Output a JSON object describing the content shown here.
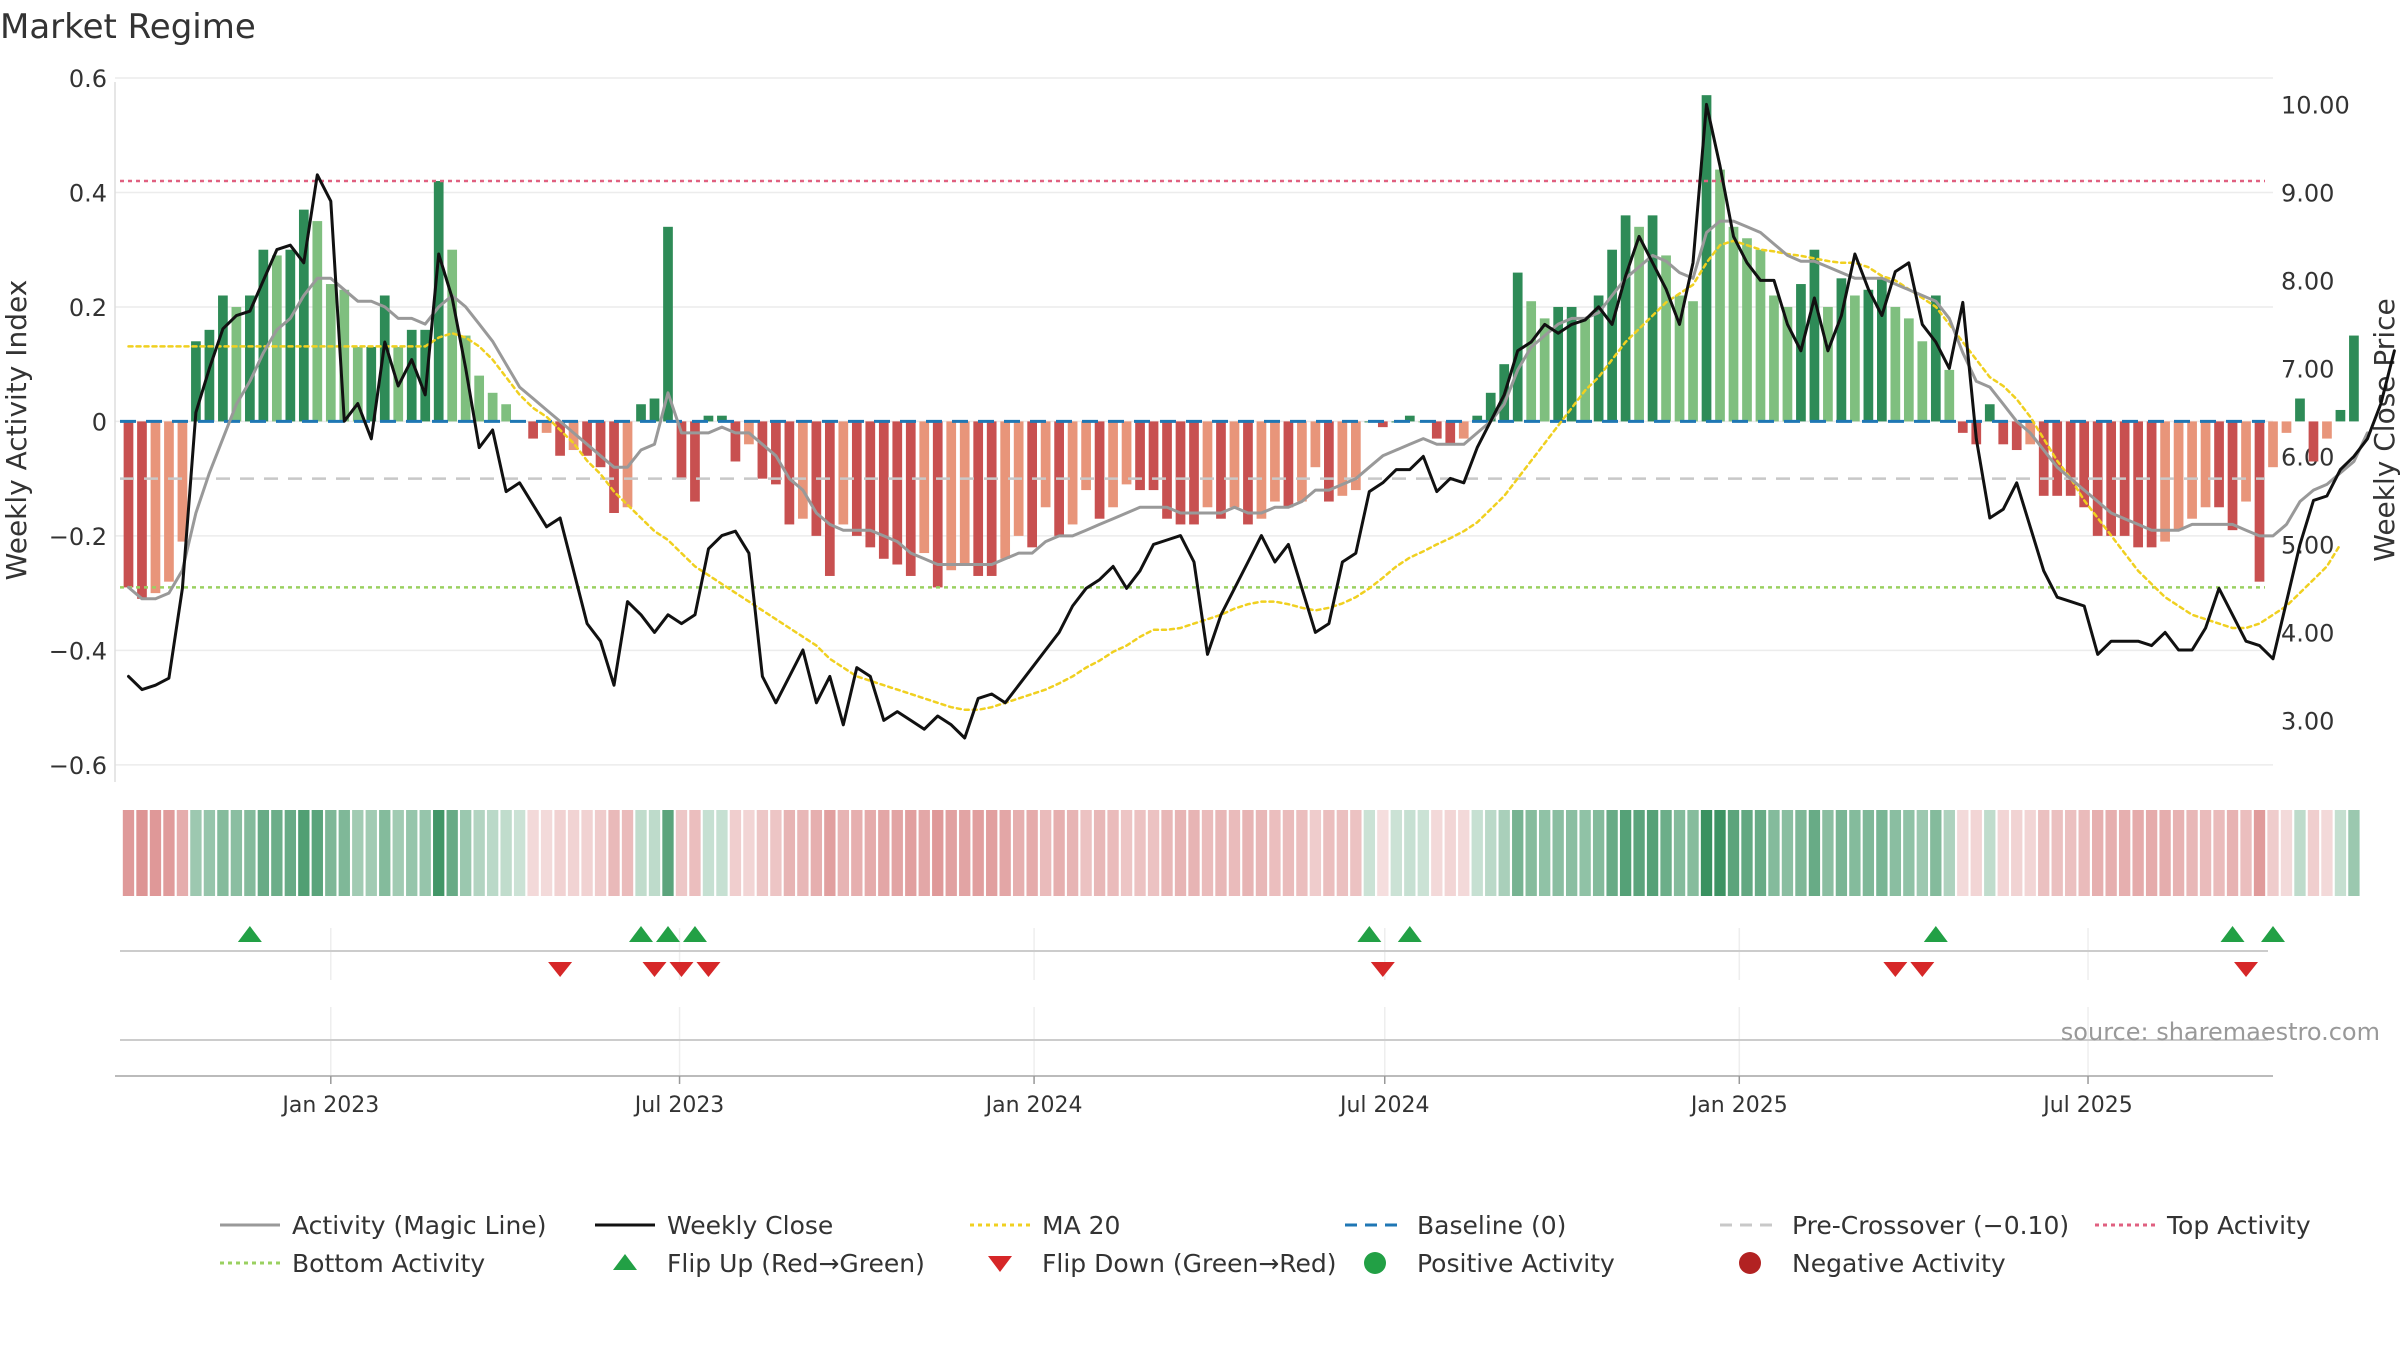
{
  "title": "Market Regime",
  "source_note": "source: sharemaestro.com",
  "colors": {
    "strong_green": "#2e8b57",
    "light_green": "#7fbf7f",
    "strong_red": "#c85050",
    "light_red": "#e8957a",
    "activity_line": "#999999",
    "close_line": "#111111",
    "ma20": "#f0d020",
    "baseline": "#1f77b4",
    "pre_crossover": "#c8c8c8",
    "top_activity": "#e06080",
    "bottom_activity": "#9ad060",
    "flip_up": "#22a045",
    "flip_down": "#d62728"
  },
  "legend": [
    {
      "label": "Activity (Magic Line)",
      "kind": "line",
      "color": "#999999",
      "dash": ""
    },
    {
      "label": "Weekly Close",
      "kind": "line",
      "color": "#111111",
      "dash": ""
    },
    {
      "label": "MA 20",
      "kind": "line",
      "color": "#f0d020",
      "dash": "4,4"
    },
    {
      "label": "Baseline (0)",
      "kind": "line",
      "color": "#1f77b4",
      "dash": "12,8"
    },
    {
      "label": "Pre-Crossover (−0.10)",
      "kind": "line",
      "color": "#c8c8c8",
      "dash": "12,8"
    },
    {
      "label": "Top Activity",
      "kind": "line",
      "color": "#e06080",
      "dash": "4,4"
    },
    {
      "label": "Bottom Activity",
      "kind": "line",
      "color": "#9ad060",
      "dash": "4,4"
    },
    {
      "label": "Flip Up (Red→Green)",
      "kind": "up",
      "color": "#22a045",
      "dash": ""
    },
    {
      "label": "Flip Down (Green→Red)",
      "kind": "down",
      "color": "#d62728",
      "dash": ""
    },
    {
      "label": "Positive Activity",
      "kind": "dot",
      "color": "#22a045",
      "dash": ""
    },
    {
      "label": "Negative Activity",
      "kind": "dot",
      "color": "#b22222",
      "dash": ""
    }
  ],
  "chart_data": {
    "type": "bar",
    "title": "Market Regime",
    "xlabel": "",
    "ylabel": "Weekly Activity Index",
    "y2label": "Weekly Close Price",
    "ylim": [
      -0.63,
      0.6
    ],
    "yticks": [
      -0.6,
      -0.4,
      -0.2,
      0,
      0.2,
      0.4,
      0.6
    ],
    "yticklabels": [
      "−0.6",
      "−0.4",
      "−0.2",
      "0",
      "0.2",
      "0.4",
      "0.6"
    ],
    "y2lim": [
      2.3,
      10.3
    ],
    "y2ticks": [
      3,
      4,
      5,
      6,
      7,
      8,
      9,
      10
    ],
    "y2ticklabels": [
      "3.00",
      "4.00",
      "5.00",
      "6.00",
      "7.00",
      "8.00",
      "9.00",
      "10.00"
    ],
    "xlim": [
      "2022-09-11",
      "2025-10-05"
    ],
    "xticks": [
      {
        "date": "2023-01-01",
        "label": "Jan 2023"
      },
      {
        "date": "2023-07-01",
        "label": "Jul 2023"
      },
      {
        "date": "2024-01-01",
        "label": "Jan 2024"
      },
      {
        "date": "2024-07-01",
        "label": "Jul 2024"
      },
      {
        "date": "2025-01-01",
        "label": "Jan 2025"
      },
      {
        "date": "2025-07-01",
        "label": "Jul 2025"
      }
    ],
    "first_week": "2022-09-18",
    "week_step_days": 7,
    "reference_lines": {
      "baseline": 0,
      "pre_crossover": -0.1,
      "top_activity": 0.42,
      "bottom_activity": -0.29
    },
    "grid": true,
    "legend_position": "bottom",
    "activity_index": [
      -0.29,
      -0.31,
      -0.3,
      -0.28,
      -0.21,
      0.14,
      0.16,
      0.22,
      0.2,
      0.22,
      0.3,
      0.29,
      0.3,
      0.37,
      0.35,
      0.24,
      0.23,
      0.13,
      0.13,
      0.22,
      0.13,
      0.16,
      0.16,
      0.42,
      0.3,
      0.15,
      0.08,
      0.05,
      0.03,
      0,
      -0.03,
      -0.02,
      -0.06,
      -0.05,
      -0.06,
      -0.08,
      -0.16,
      -0.15,
      0.03,
      0.04,
      0.34,
      -0.1,
      -0.14,
      0.01,
      0.01,
      -0.07,
      -0.04,
      -0.1,
      -0.11,
      -0.18,
      -0.17,
      -0.2,
      -0.27,
      -0.18,
      -0.2,
      -0.22,
      -0.24,
      -0.25,
      -0.27,
      -0.23,
      -0.29,
      -0.26,
      -0.25,
      -0.27,
      -0.27,
      -0.24,
      -0.2,
      -0.22,
      -0.15,
      -0.2,
      -0.18,
      -0.12,
      -0.17,
      -0.15,
      -0.11,
      -0.12,
      -0.12,
      -0.17,
      -0.18,
      -0.18,
      -0.15,
      -0.17,
      -0.15,
      -0.18,
      -0.17,
      -0.14,
      -0.15,
      -0.14,
      -0.08,
      -0.14,
      -0.13,
      -0.12,
      0,
      -0.01,
      0,
      0.01,
      0,
      -0.03,
      -0.04,
      -0.03,
      0.01,
      0.05,
      0.1,
      0.26,
      0.21,
      0.18,
      0.2,
      0.2,
      0.18,
      0.22,
      0.3,
      0.36,
      0.34,
      0.36,
      0.29,
      0.22,
      0.21,
      0.57,
      0.44,
      0.34,
      0.32,
      0.3,
      0.22,
      0.2,
      0.24,
      0.3,
      0.2,
      0.25,
      0.22,
      0.23,
      0.25,
      0.2,
      0.18,
      0.14,
      0.22,
      0.09,
      -0.02,
      -0.04,
      0.03,
      -0.04,
      -0.05,
      -0.04,
      -0.13,
      -0.13,
      -0.13,
      -0.15,
      -0.2,
      -0.2,
      -0.2,
      -0.22,
      -0.22,
      -0.21,
      -0.19,
      -0.17,
      -0.15,
      -0.15,
      -0.19,
      -0.14,
      -0.28,
      -0.08,
      -0.02,
      0.04,
      -0.07,
      -0.03,
      0.02,
      0.15
    ],
    "activity_line": [
      -0.29,
      -0.31,
      -0.31,
      -0.3,
      -0.26,
      -0.16,
      -0.09,
      -0.03,
      0.03,
      0.07,
      0.12,
      0.16,
      0.18,
      0.22,
      0.25,
      0.25,
      0.23,
      0.21,
      0.21,
      0.2,
      0.18,
      0.18,
      0.17,
      0.2,
      0.22,
      0.2,
      0.17,
      0.14,
      0.1,
      0.06,
      0.04,
      0.02,
      0.0,
      -0.02,
      -0.04,
      -0.06,
      -0.08,
      -0.08,
      -0.05,
      -0.04,
      0.05,
      -0.02,
      -0.02,
      -0.02,
      -0.01,
      -0.02,
      -0.02,
      -0.04,
      -0.06,
      -0.1,
      -0.12,
      -0.16,
      -0.18,
      -0.19,
      -0.19,
      -0.19,
      -0.2,
      -0.21,
      -0.23,
      -0.24,
      -0.25,
      -0.25,
      -0.25,
      -0.25,
      -0.25,
      -0.24,
      -0.23,
      -0.23,
      -0.21,
      -0.2,
      -0.2,
      -0.19,
      -0.18,
      -0.17,
      -0.16,
      -0.15,
      -0.15,
      -0.15,
      -0.16,
      -0.16,
      -0.16,
      -0.16,
      -0.15,
      -0.16,
      -0.16,
      -0.15,
      -0.15,
      -0.14,
      -0.12,
      -0.12,
      -0.11,
      -0.1,
      -0.08,
      -0.06,
      -0.05,
      -0.04,
      -0.03,
      -0.04,
      -0.04,
      -0.04,
      -0.02,
      0.0,
      0.03,
      0.09,
      0.13,
      0.15,
      0.17,
      0.18,
      0.18,
      0.19,
      0.22,
      0.25,
      0.27,
      0.29,
      0.28,
      0.26,
      0.25,
      0.33,
      0.35,
      0.35,
      0.34,
      0.33,
      0.31,
      0.29,
      0.28,
      0.28,
      0.27,
      0.26,
      0.25,
      0.25,
      0.25,
      0.24,
      0.23,
      0.22,
      0.21,
      0.18,
      0.12,
      0.07,
      0.06,
      0.03,
      0.0,
      -0.02,
      -0.05,
      -0.08,
      -0.1,
      -0.12,
      -0.14,
      -0.16,
      -0.17,
      -0.18,
      -0.19,
      -0.19,
      -0.19,
      -0.18,
      -0.18,
      -0.18,
      -0.18,
      -0.19,
      -0.2,
      -0.2,
      -0.18,
      -0.14,
      -0.12,
      -0.11,
      -0.09,
      -0.07,
      -0.02
    ],
    "weekly_close": [
      3.5,
      3.35,
      3.4,
      3.48,
      4.5,
      6.5,
      7.0,
      7.45,
      7.6,
      7.65,
      8.0,
      8.35,
      8.4,
      8.2,
      9.2,
      8.9,
      6.4,
      6.6,
      6.2,
      7.3,
      6.8,
      7.1,
      6.7,
      8.3,
      7.8,
      7.0,
      6.1,
      6.3,
      5.6,
      5.7,
      5.45,
      5.2,
      5.3,
      4.7,
      4.1,
      3.9,
      3.4,
      4.35,
      4.2,
      4.0,
      4.2,
      4.1,
      4.2,
      4.95,
      5.1,
      5.15,
      4.9,
      3.5,
      3.2,
      3.5,
      3.8,
      3.2,
      3.5,
      2.95,
      3.6,
      3.5,
      3.0,
      3.1,
      3.0,
      2.9,
      3.05,
      2.95,
      2.8,
      3.25,
      3.3,
      3.2,
      3.4,
      3.6,
      3.8,
      4.0,
      4.3,
      4.5,
      4.6,
      4.75,
      4.5,
      4.7,
      5.0,
      5.05,
      5.1,
      4.8,
      3.75,
      4.2,
      4.5,
      4.8,
      5.1,
      4.8,
      5.0,
      4.5,
      4.0,
      4.1,
      4.8,
      4.9,
      5.6,
      5.7,
      5.85,
      5.85,
      6.0,
      5.6,
      5.75,
      5.7,
      6.1,
      6.4,
      6.7,
      7.2,
      7.3,
      7.5,
      7.4,
      7.5,
      7.55,
      7.7,
      7.5,
      8.05,
      8.5,
      8.2,
      7.9,
      7.5,
      8.2,
      10.0,
      9.3,
      8.5,
      8.2,
      8.0,
      8.0,
      7.5,
      7.2,
      7.8,
      7.2,
      7.6,
      8.3,
      7.9,
      7.6,
      8.1,
      8.2,
      7.5,
      7.3,
      7.0,
      7.75,
      6.2,
      5.3,
      5.4,
      5.7,
      5.2,
      4.7,
      4.4,
      4.35,
      4.3,
      3.75,
      3.9,
      3.9,
      3.9,
      3.85,
      4.0,
      3.8,
      3.8,
      4.05,
      4.5,
      4.2,
      3.9,
      3.85,
      3.7,
      4.35,
      5.0,
      5.5,
      5.55,
      5.85,
      6.0,
      6.2,
      6.6,
      7.2
    ],
    "ma20": [
      7.25,
      7.25,
      7.25,
      7.25,
      7.25,
      7.25,
      7.25,
      7.25,
      7.25,
      7.25,
      7.25,
      7.25,
      7.25,
      7.25,
      7.25,
      7.25,
      7.25,
      7.25,
      7.25,
      7.25,
      7.25,
      7.25,
      7.25,
      7.35,
      7.4,
      7.35,
      7.25,
      7.1,
      6.9,
      6.7,
      6.55,
      6.45,
      6.3,
      6.15,
      5.95,
      5.8,
      5.6,
      5.45,
      5.3,
      5.15,
      5.05,
      4.9,
      4.75,
      4.65,
      4.55,
      4.45,
      4.35,
      4.25,
      4.15,
      4.05,
      3.95,
      3.85,
      3.7,
      3.6,
      3.5,
      3.45,
      3.4,
      3.35,
      3.3,
      3.25,
      3.2,
      3.15,
      3.12,
      3.12,
      3.15,
      3.2,
      3.25,
      3.3,
      3.35,
      3.42,
      3.5,
      3.6,
      3.68,
      3.78,
      3.85,
      3.95,
      4.03,
      4.03,
      4.05,
      4.1,
      4.15,
      4.2,
      4.27,
      4.32,
      4.35,
      4.35,
      4.32,
      4.28,
      4.25,
      4.28,
      4.33,
      4.4,
      4.5,
      4.62,
      4.75,
      4.85,
      4.92,
      5.0,
      5.07,
      5.15,
      5.25,
      5.4,
      5.55,
      5.75,
      5.95,
      6.15,
      6.35,
      6.55,
      6.75,
      6.9,
      7.1,
      7.3,
      7.45,
      7.6,
      7.75,
      7.85,
      7.95,
      8.2,
      8.4,
      8.45,
      8.4,
      8.35,
      8.33,
      8.3,
      8.28,
      8.25,
      8.22,
      8.2,
      8.2,
      8.15,
      8.05,
      8.0,
      7.9,
      7.8,
      7.7,
      7.5,
      7.3,
      7.1,
      6.9,
      6.8,
      6.65,
      6.45,
      6.2,
      5.95,
      5.75,
      5.5,
      5.3,
      5.1,
      4.9,
      4.7,
      4.55,
      4.4,
      4.3,
      4.2,
      4.15,
      4.1,
      4.05,
      4.05,
      4.1,
      4.2,
      4.3,
      4.45,
      4.6,
      4.75,
      5.0
    ],
    "flip_up_dates": [
      "2022-11-20",
      "2023-06-11",
      "2023-06-25",
      "2023-07-09",
      "2024-06-23",
      "2024-07-14",
      "2025-04-13",
      "2025-09-14",
      "2025-10-05"
    ],
    "flip_down_dates": [
      "2023-04-30",
      "2023-06-18",
      "2023-07-02",
      "2023-07-16",
      "2024-06-30",
      "2025-03-23",
      "2025-04-06",
      "2025-09-21"
    ]
  }
}
